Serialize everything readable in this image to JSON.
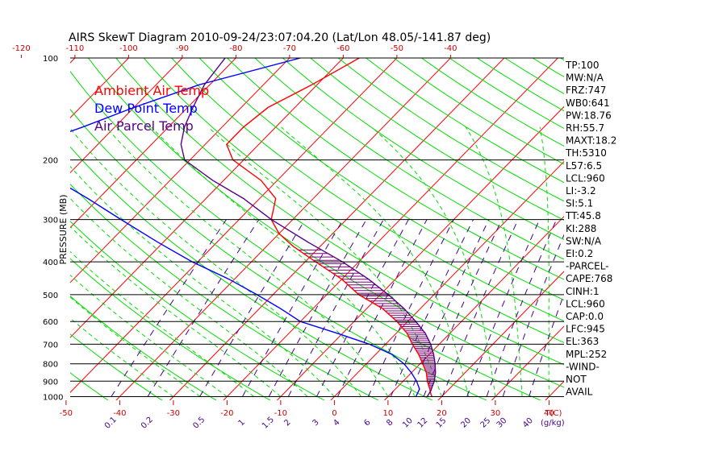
{
  "chart_data": {
    "type": "line",
    "title": "AIRS SkewT Diagram 2010-09-24/23:07:04.20 (Lat/Lon 48.05/-141.87 deg)",
    "ylabel": "PRESSURE (MB)",
    "xlabel_units": "T(C)",
    "mixing_ratio_units": "(g/kg)",
    "y_scale": "log",
    "y_range": [
      1000,
      100
    ],
    "y_ticks": [
      100,
      200,
      300,
      400,
      500,
      600,
      700,
      800,
      900,
      1000
    ],
    "bottom_temp_ticks": [
      -50,
      -40,
      -30,
      -20,
      -10,
      0,
      10,
      20,
      30,
      40
    ],
    "top_temp_ticks": [
      -120,
      -110,
      -100,
      -90,
      -80,
      -70,
      -60,
      -50,
      -40
    ],
    "mixing_ratio_labels": [
      "0.1",
      "0.2",
      "0.5",
      "1",
      "1.5",
      "2",
      "3",
      "4",
      "6",
      "8",
      "10",
      "12",
      "15",
      "20",
      "25",
      "30",
      "40"
    ],
    "legend": [
      "Ambient Air Temp",
      "Dew Point Temp",
      "Air Parcel Temp"
    ],
    "series": [
      {
        "name": "Ambient Air Temp",
        "color": "#ff0000",
        "points": [
          [
            100,
            -57
          ],
          [
            120,
            -61
          ],
          [
            140,
            -65
          ],
          [
            160,
            -66
          ],
          [
            180,
            -66
          ],
          [
            200,
            -62
          ],
          [
            230,
            -53
          ],
          [
            260,
            -47
          ],
          [
            300,
            -44
          ],
          [
            330,
            -40
          ],
          [
            360,
            -35
          ],
          [
            400,
            -28
          ],
          [
            450,
            -20
          ],
          [
            500,
            -14
          ],
          [
            550,
            -7
          ],
          [
            600,
            -2
          ],
          [
            650,
            2
          ],
          [
            700,
            5
          ],
          [
            750,
            8
          ],
          [
            800,
            10.5
          ],
          [
            850,
            12.8
          ],
          [
            900,
            14.5
          ],
          [
            950,
            16.4
          ],
          [
            985,
            17.6
          ],
          [
            1000,
            18.2
          ]
        ]
      },
      {
        "name": "Dew Point Temp",
        "color": "#0000ff",
        "points": [
          [
            100,
            -68
          ],
          [
            120,
            -82
          ],
          [
            140,
            -90
          ],
          [
            160,
            -96
          ],
          [
            180,
            -102
          ],
          [
            200,
            -100
          ],
          [
            230,
            -91
          ],
          [
            260,
            -82
          ],
          [
            300,
            -72
          ],
          [
            350,
            -61
          ],
          [
            400,
            -51
          ],
          [
            450,
            -41
          ],
          [
            500,
            -33
          ],
          [
            550,
            -26
          ],
          [
            600,
            -20
          ],
          [
            650,
            -11
          ],
          [
            700,
            -3
          ],
          [
            750,
            3
          ],
          [
            800,
            7
          ],
          [
            850,
            10
          ],
          [
            900,
            12.5
          ],
          [
            950,
            14.5
          ],
          [
            1000,
            15.2
          ]
        ]
      },
      {
        "name": "Air Parcel Temp",
        "color": "#550088",
        "points": [
          [
            100,
            -82
          ],
          [
            120,
            -81
          ],
          [
            140,
            -79
          ],
          [
            160,
            -77
          ],
          [
            180,
            -74.5
          ],
          [
            200,
            -71
          ],
          [
            230,
            -62
          ],
          [
            260,
            -53
          ],
          [
            300,
            -44
          ],
          [
            350,
            -33
          ],
          [
            400,
            -23
          ],
          [
            450,
            -15
          ],
          [
            500,
            -8.5
          ],
          [
            550,
            -3
          ],
          [
            600,
            1.5
          ],
          [
            650,
            5.4
          ],
          [
            700,
            8.4
          ],
          [
            750,
            10.8
          ],
          [
            800,
            12.8
          ],
          [
            850,
            14.5
          ],
          [
            900,
            15.8
          ],
          [
            945,
            16.6
          ],
          [
            960,
            16.9
          ],
          [
            1000,
            17.3
          ]
        ]
      }
    ],
    "indices": [
      "TP:100",
      "MW:N/A",
      "FRZ:747",
      "WB0:641",
      "PW:18.76",
      "RH:55.7",
      "MAXT:18.2",
      "TH:5310",
      "L57:6.5",
      "LCL:960",
      "LI:-3.2",
      "SI:5.1",
      "TT:45.8",
      "KI:288",
      "SW:N/A",
      "EI:0.2",
      "-PARCEL-",
      "CAPE:768",
      "CINH:1",
      "LCL:960",
      "CAP:0.0",
      "LFC:945",
      "EL:363",
      "MPL:252",
      "-WIND-",
      "NOT",
      "AVAIL"
    ],
    "colors": {
      "isotherm": "#ff0000",
      "dry_adiabat": "#00dd00",
      "moist_adiabat": "#00dd00",
      "mixing_ratio": "#440088",
      "dewpoint": "#0000ff",
      "parcel": "#550088",
      "isobar": "#000000",
      "cape_hatch": "#770077",
      "temp_tick": "#cc0000",
      "mr_label": "#440088"
    }
  }
}
